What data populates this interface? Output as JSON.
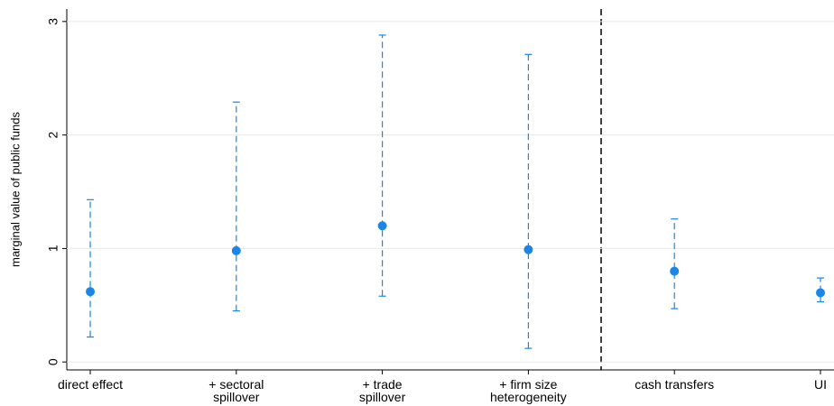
{
  "chart_data": {
    "type": "errorbar",
    "ylabel": "marginal value of public funds",
    "categories": [
      [
        "direct effect"
      ],
      [
        "+ sectoral",
        "spillover"
      ],
      [
        "+ trade",
        "spillover"
      ],
      [
        "+ firm size",
        "heterogeneity"
      ],
      [
        "cash transfers"
      ],
      [
        "UI"
      ]
    ],
    "values": [
      0.62,
      0.98,
      1.2,
      0.99,
      0.8,
      0.61
    ],
    "lower": [
      0.22,
      0.45,
      0.58,
      0.12,
      0.47,
      0.53
    ],
    "upper": [
      1.43,
      2.29,
      2.88,
      2.71,
      1.26,
      0.74
    ],
    "color": "#1a86e8",
    "ylim": [
      -0.07,
      3.11
    ],
    "yticks": [
      0,
      1,
      2,
      3
    ],
    "grid": true
  }
}
